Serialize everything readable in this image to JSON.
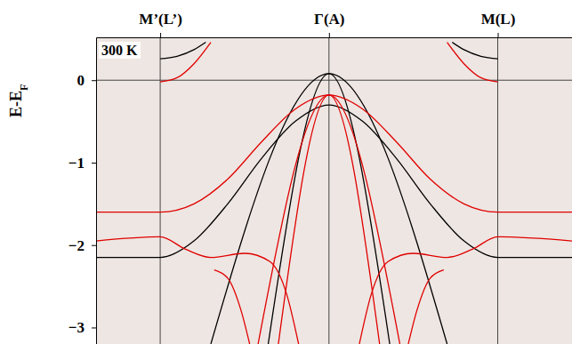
{
  "chart_data": {
    "type": "line",
    "y_label": "E-EF",
    "annotations": [
      "300 K"
    ],
    "xlim": [
      -1.38,
      1.44
    ],
    "xticks": [
      {
        "value": -1,
        "label": "M’(L’)"
      },
      {
        "value": 0,
        "label": "Γ(A)"
      },
      {
        "value": 1,
        "label": "M(L)"
      }
    ],
    "ylim": [
      -3.2,
      0.52
    ],
    "yticks": [
      {
        "value": -3,
        "label": "−3"
      },
      {
        "value": -2,
        "label": "−2"
      },
      {
        "value": -1,
        "label": "−1"
      },
      0
    ],
    "reference_lines": [
      0
    ],
    "grid": "x",
    "series": [
      {
        "color": "#000000",
        "x": [
          -1.0,
          -0.9,
          -0.8,
          -0.73
        ],
        "values": [
          0.26,
          0.29,
          0.37,
          0.46
        ]
      },
      {
        "color": "#000000",
        "x": [
          0.73,
          0.8,
          0.9,
          1.0
        ],
        "values": [
          0.46,
          0.37,
          0.29,
          0.26
        ]
      },
      {
        "color": "#000000",
        "x": [
          -1.38,
          -1.0,
          -0.8,
          -0.6,
          -0.4,
          -0.2,
          0,
          0.2,
          0.4,
          0.6,
          0.8,
          1.0,
          1.44
        ],
        "values": [
          -2.15,
          -2.15,
          -1.95,
          -1.5,
          -0.95,
          -0.5,
          -0.3,
          -0.5,
          -0.95,
          -1.5,
          -1.95,
          -2.15,
          -2.15
        ]
      },
      {
        "color": "#000000",
        "x": [
          -0.7,
          0,
          0.7
        ],
        "values": [
          -3.2,
          0.08,
          -3.2
        ]
      },
      {
        "color": "#000000",
        "x": [
          -0.36,
          0,
          0.36
        ],
        "values": [
          -3.2,
          0.08,
          -3.2
        ]
      },
      {
        "color": "#e00000",
        "x": [
          -1.0,
          -0.9,
          -0.8,
          -0.7
        ],
        "values": [
          -0.02,
          0.03,
          0.2,
          0.46
        ]
      },
      {
        "color": "#e00000",
        "x": [
          0.7,
          0.8,
          0.9,
          1.0
        ],
        "values": [
          0.46,
          0.2,
          0.03,
          -0.02
        ]
      },
      {
        "color": "#e00000",
        "x": [
          -1.38,
          -1.0,
          -0.8,
          -0.6,
          -0.4,
          -0.2,
          0,
          0.2,
          0.4,
          0.6,
          0.8,
          1.0,
          1.44
        ],
        "values": [
          -1.6,
          -1.6,
          -1.5,
          -1.2,
          -0.75,
          -0.35,
          -0.18,
          -0.35,
          -0.75,
          -1.2,
          -1.5,
          -1.6,
          -1.6
        ]
      },
      {
        "color": "#e00000",
        "x": [
          -0.42,
          0,
          0.42
        ],
        "values": [
          -3.2,
          -0.18,
          -3.2
        ]
      },
      {
        "color": "#e00000",
        "x": [
          -0.3,
          0,
          0.3
        ],
        "values": [
          -3.2,
          -0.18,
          -3.2
        ]
      },
      {
        "color": "#e00000",
        "x": [
          -1.38,
          -1.0,
          -0.85,
          -0.7,
          -0.5,
          -0.35,
          -0.25,
          -0.18
        ],
        "values": [
          -1.95,
          -1.9,
          -2.05,
          -2.15,
          -2.1,
          -2.2,
          -2.6,
          -3.2
        ]
      },
      {
        "color": "#e00000",
        "x": [
          0.18,
          0.25,
          0.35,
          0.5,
          0.7,
          0.85,
          1.0,
          1.44
        ],
        "values": [
          -3.2,
          -2.6,
          -2.2,
          -2.1,
          -2.15,
          -2.05,
          -1.9,
          -1.95
        ]
      },
      {
        "color": "#e00000",
        "x": [
          -0.68,
          -0.6,
          -0.52,
          -0.47
        ],
        "values": [
          -2.3,
          -2.4,
          -2.8,
          -3.2
        ]
      },
      {
        "color": "#e00000",
        "x": [
          0.47,
          0.52,
          0.6,
          0.68
        ],
        "values": [
          -3.2,
          -2.8,
          -2.4,
          -2.3
        ]
      }
    ]
  }
}
